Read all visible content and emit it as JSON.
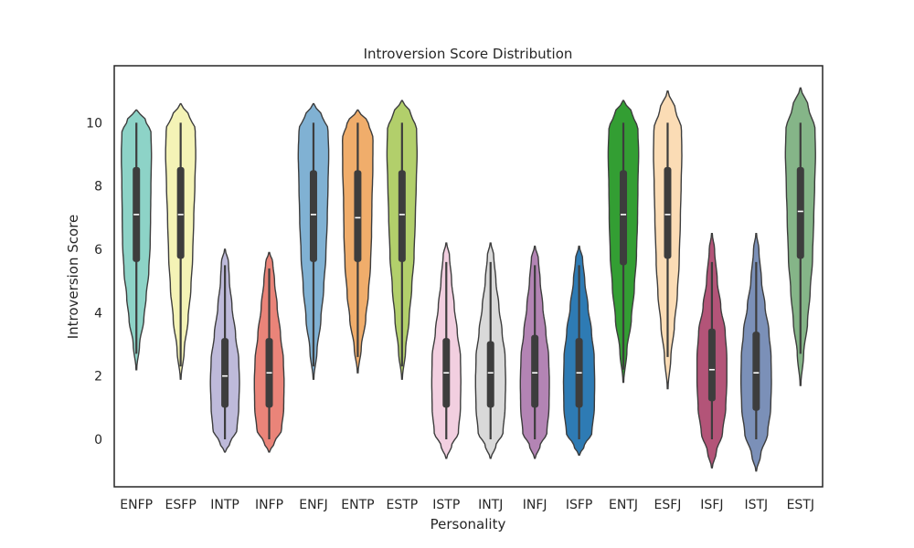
{
  "chart_data": {
    "type": "violin",
    "title": "Introversion Score Distribution",
    "xlabel": "Personality",
    "ylabel": "Introversion Score",
    "ylim": [
      -1.5,
      11.8
    ],
    "yticks": [
      0,
      2,
      4,
      6,
      8,
      10
    ],
    "grid": false,
    "categories": [
      "ENFP",
      "ESFP",
      "INTP",
      "INFP",
      "ENFJ",
      "ENTP",
      "ESTP",
      "ISTP",
      "INTJ",
      "INFJ",
      "ISFP",
      "ENTJ",
      "ESFJ",
      "ISFJ",
      "ISTJ",
      "ESTJ"
    ],
    "colors": [
      "#8dd3c7",
      "#f4f3b6",
      "#bebada",
      "#ea8479",
      "#80b1d3",
      "#f0ad6b",
      "#b2cf6b",
      "#f2cfe0",
      "#d9d9d9",
      "#b384b4",
      "#2e7bb4",
      "#339e33",
      "#fbdcb5",
      "#b35478",
      "#7b90b8",
      "#85b588"
    ],
    "series": [
      {
        "name": "ENFP",
        "min": 2.2,
        "max": 10.4,
        "q1": 5.6,
        "median": 7.1,
        "q3": 8.6,
        "wmin": 2.7,
        "wmax": 10.0,
        "profile": [
          [
            2.2,
            0.02
          ],
          [
            3,
            0.18
          ],
          [
            3.8,
            0.42
          ],
          [
            4.5,
            0.55
          ],
          [
            5.3,
            0.7
          ],
          [
            6.2,
            0.78
          ],
          [
            7,
            0.8
          ],
          [
            8,
            0.82
          ],
          [
            9,
            0.85
          ],
          [
            9.7,
            0.82
          ],
          [
            10.1,
            0.5
          ],
          [
            10.4,
            0.02
          ]
        ]
      },
      {
        "name": "ESFP",
        "min": 1.9,
        "max": 10.6,
        "q1": 5.7,
        "median": 7.1,
        "q3": 8.6,
        "wmin": 2.3,
        "wmax": 10.0,
        "profile": [
          [
            1.9,
            0.02
          ],
          [
            2.8,
            0.2
          ],
          [
            3.8,
            0.42
          ],
          [
            4.8,
            0.58
          ],
          [
            5.8,
            0.68
          ],
          [
            7,
            0.74
          ],
          [
            8,
            0.8
          ],
          [
            9,
            0.85
          ],
          [
            9.8,
            0.82
          ],
          [
            10.2,
            0.5
          ],
          [
            10.6,
            0.02
          ]
        ]
      },
      {
        "name": "INTP",
        "min": -0.4,
        "max": 6.0,
        "q1": 1.0,
        "median": 2.0,
        "q3": 3.2,
        "wmin": 0.0,
        "wmax": 5.5,
        "profile": [
          [
            -0.4,
            0.02
          ],
          [
            -0.1,
            0.3
          ],
          [
            0.3,
            0.68
          ],
          [
            1,
            0.78
          ],
          [
            1.8,
            0.82
          ],
          [
            2.5,
            0.78
          ],
          [
            3.3,
            0.6
          ],
          [
            4.2,
            0.4
          ],
          [
            5,
            0.25
          ],
          [
            5.6,
            0.2
          ],
          [
            6,
            0.02
          ]
        ]
      },
      {
        "name": "INFP",
        "min": -0.4,
        "max": 5.9,
        "q1": 1.0,
        "median": 2.1,
        "q3": 3.2,
        "wmin": 0.0,
        "wmax": 5.4,
        "profile": [
          [
            -0.4,
            0.02
          ],
          [
            -0.1,
            0.3
          ],
          [
            0.3,
            0.7
          ],
          [
            1,
            0.82
          ],
          [
            1.8,
            0.84
          ],
          [
            2.5,
            0.8
          ],
          [
            3.3,
            0.64
          ],
          [
            4.2,
            0.45
          ],
          [
            5,
            0.3
          ],
          [
            5.6,
            0.2
          ],
          [
            5.9,
            0.02
          ]
        ]
      },
      {
        "name": "ENFJ",
        "min": 1.9,
        "max": 10.6,
        "q1": 5.6,
        "median": 7.1,
        "q3": 8.5,
        "wmin": 2.3,
        "wmax": 10.0,
        "profile": [
          [
            1.9,
            0.02
          ],
          [
            2.8,
            0.2
          ],
          [
            3.8,
            0.42
          ],
          [
            4.8,
            0.58
          ],
          [
            5.8,
            0.7
          ],
          [
            7,
            0.78
          ],
          [
            8,
            0.82
          ],
          [
            9,
            0.86
          ],
          [
            9.8,
            0.82
          ],
          [
            10.2,
            0.5
          ],
          [
            10.6,
            0.02
          ]
        ]
      },
      {
        "name": "ENTP",
        "min": 2.1,
        "max": 10.4,
        "q1": 5.6,
        "median": 7.0,
        "q3": 8.5,
        "wmin": 2.6,
        "wmax": 10.0,
        "profile": [
          [
            2.1,
            0.02
          ],
          [
            2.9,
            0.2
          ],
          [
            3.8,
            0.45
          ],
          [
            4.6,
            0.6
          ],
          [
            5.5,
            0.72
          ],
          [
            6.5,
            0.78
          ],
          [
            7.5,
            0.8
          ],
          [
            8.5,
            0.85
          ],
          [
            9.5,
            0.86
          ],
          [
            10,
            0.6
          ],
          [
            10.4,
            0.02
          ]
        ]
      },
      {
        "name": "ESTP",
        "min": 1.9,
        "max": 10.7,
        "q1": 5.6,
        "median": 7.1,
        "q3": 8.5,
        "wmin": 2.3,
        "wmax": 10.0,
        "profile": [
          [
            1.9,
            0.02
          ],
          [
            2.8,
            0.2
          ],
          [
            3.8,
            0.4
          ],
          [
            4.8,
            0.55
          ],
          [
            5.8,
            0.68
          ],
          [
            7,
            0.75
          ],
          [
            8,
            0.8
          ],
          [
            9,
            0.85
          ],
          [
            9.8,
            0.82
          ],
          [
            10.3,
            0.5
          ],
          [
            10.7,
            0.02
          ]
        ]
      },
      {
        "name": "ISTP",
        "min": -0.6,
        "max": 6.2,
        "q1": 1.0,
        "median": 2.1,
        "q3": 3.2,
        "wmin": 0.0,
        "wmax": 5.6,
        "profile": [
          [
            -0.6,
            0.02
          ],
          [
            -0.2,
            0.3
          ],
          [
            0.2,
            0.68
          ],
          [
            1,
            0.8
          ],
          [
            1.8,
            0.82
          ],
          [
            2.6,
            0.8
          ],
          [
            3.4,
            0.62
          ],
          [
            4.2,
            0.45
          ],
          [
            5,
            0.3
          ],
          [
            5.8,
            0.18
          ],
          [
            6.2,
            0.02
          ]
        ]
      },
      {
        "name": "INTJ",
        "min": -0.6,
        "max": 6.2,
        "q1": 1.0,
        "median": 2.1,
        "q3": 3.1,
        "wmin": 0.0,
        "wmax": 5.6,
        "profile": [
          [
            -0.6,
            0.02
          ],
          [
            -0.2,
            0.3
          ],
          [
            0.2,
            0.7
          ],
          [
            1,
            0.82
          ],
          [
            1.8,
            0.85
          ],
          [
            2.6,
            0.82
          ],
          [
            3.4,
            0.65
          ],
          [
            4.2,
            0.47
          ],
          [
            5,
            0.3
          ],
          [
            5.8,
            0.18
          ],
          [
            6.2,
            0.02
          ]
        ]
      },
      {
        "name": "INFJ",
        "min": -0.6,
        "max": 6.1,
        "q1": 1.0,
        "median": 2.1,
        "q3": 3.3,
        "wmin": 0.0,
        "wmax": 5.5,
        "profile": [
          [
            -0.6,
            0.02
          ],
          [
            -0.2,
            0.3
          ],
          [
            0.2,
            0.68
          ],
          [
            1,
            0.8
          ],
          [
            1.8,
            0.82
          ],
          [
            2.6,
            0.78
          ],
          [
            3.4,
            0.62
          ],
          [
            4.2,
            0.45
          ],
          [
            5,
            0.3
          ],
          [
            5.7,
            0.2
          ],
          [
            6.1,
            0.02
          ]
        ]
      },
      {
        "name": "ISFP",
        "min": -0.5,
        "max": 6.1,
        "q1": 1.0,
        "median": 2.1,
        "q3": 3.2,
        "wmin": 0.0,
        "wmax": 5.5,
        "profile": [
          [
            -0.5,
            0.02
          ],
          [
            -0.2,
            0.3
          ],
          [
            0.2,
            0.72
          ],
          [
            1,
            0.86
          ],
          [
            1.8,
            0.88
          ],
          [
            2.6,
            0.85
          ],
          [
            3.4,
            0.7
          ],
          [
            4.2,
            0.5
          ],
          [
            5,
            0.32
          ],
          [
            5.7,
            0.2
          ],
          [
            6.1,
            0.02
          ]
        ]
      },
      {
        "name": "ENTJ",
        "min": 1.8,
        "max": 10.7,
        "q1": 5.5,
        "median": 7.1,
        "q3": 8.5,
        "wmin": 2.2,
        "wmax": 10.0,
        "profile": [
          [
            1.8,
            0.02
          ],
          [
            2.8,
            0.2
          ],
          [
            3.8,
            0.45
          ],
          [
            4.8,
            0.62
          ],
          [
            5.8,
            0.74
          ],
          [
            7,
            0.8
          ],
          [
            8,
            0.82
          ],
          [
            9,
            0.86
          ],
          [
            9.8,
            0.82
          ],
          [
            10.3,
            0.5
          ],
          [
            10.7,
            0.02
          ]
        ]
      },
      {
        "name": "ESFJ",
        "min": 1.6,
        "max": 11.0,
        "q1": 5.7,
        "median": 7.1,
        "q3": 8.6,
        "wmin": 2.6,
        "wmax": 10.0,
        "profile": [
          [
            1.6,
            0.02
          ],
          [
            2.6,
            0.18
          ],
          [
            3.6,
            0.38
          ],
          [
            4.6,
            0.55
          ],
          [
            5.6,
            0.65
          ],
          [
            7,
            0.72
          ],
          [
            8,
            0.76
          ],
          [
            9,
            0.8
          ],
          [
            9.8,
            0.78
          ],
          [
            10.4,
            0.45
          ],
          [
            11,
            0.02
          ]
        ]
      },
      {
        "name": "ISFJ",
        "min": -0.9,
        "max": 6.5,
        "q1": 1.2,
        "median": 2.2,
        "q3": 3.5,
        "wmin": 0.0,
        "wmax": 5.6,
        "profile": [
          [
            -0.9,
            0.02
          ],
          [
            -0.4,
            0.25
          ],
          [
            0.2,
            0.6
          ],
          [
            1,
            0.78
          ],
          [
            1.8,
            0.84
          ],
          [
            2.6,
            0.84
          ],
          [
            3.4,
            0.75
          ],
          [
            4.2,
            0.5
          ],
          [
            5,
            0.3
          ],
          [
            6,
            0.15
          ],
          [
            6.5,
            0.02
          ]
        ]
      },
      {
        "name": "ISTJ",
        "min": -1.0,
        "max": 6.5,
        "q1": 0.9,
        "median": 2.1,
        "q3": 3.4,
        "wmin": 0.0,
        "wmax": 5.6,
        "profile": [
          [
            -1.0,
            0.02
          ],
          [
            -0.5,
            0.25
          ],
          [
            0.2,
            0.65
          ],
          [
            1,
            0.82
          ],
          [
            1.8,
            0.86
          ],
          [
            2.6,
            0.84
          ],
          [
            3.4,
            0.72
          ],
          [
            4.2,
            0.5
          ],
          [
            5,
            0.3
          ],
          [
            6,
            0.15
          ],
          [
            6.5,
            0.02
          ]
        ]
      },
      {
        "name": "ESTJ",
        "min": 1.7,
        "max": 11.1,
        "q1": 5.7,
        "median": 7.2,
        "q3": 8.6,
        "wmin": 2.7,
        "wmax": 10.0,
        "profile": [
          [
            1.7,
            0.02
          ],
          [
            2.7,
            0.18
          ],
          [
            3.7,
            0.4
          ],
          [
            4.7,
            0.55
          ],
          [
            5.7,
            0.68
          ],
          [
            7,
            0.75
          ],
          [
            8,
            0.8
          ],
          [
            9,
            0.85
          ],
          [
            9.8,
            0.82
          ],
          [
            10.5,
            0.45
          ],
          [
            11.1,
            0.02
          ]
        ]
      }
    ]
  }
}
